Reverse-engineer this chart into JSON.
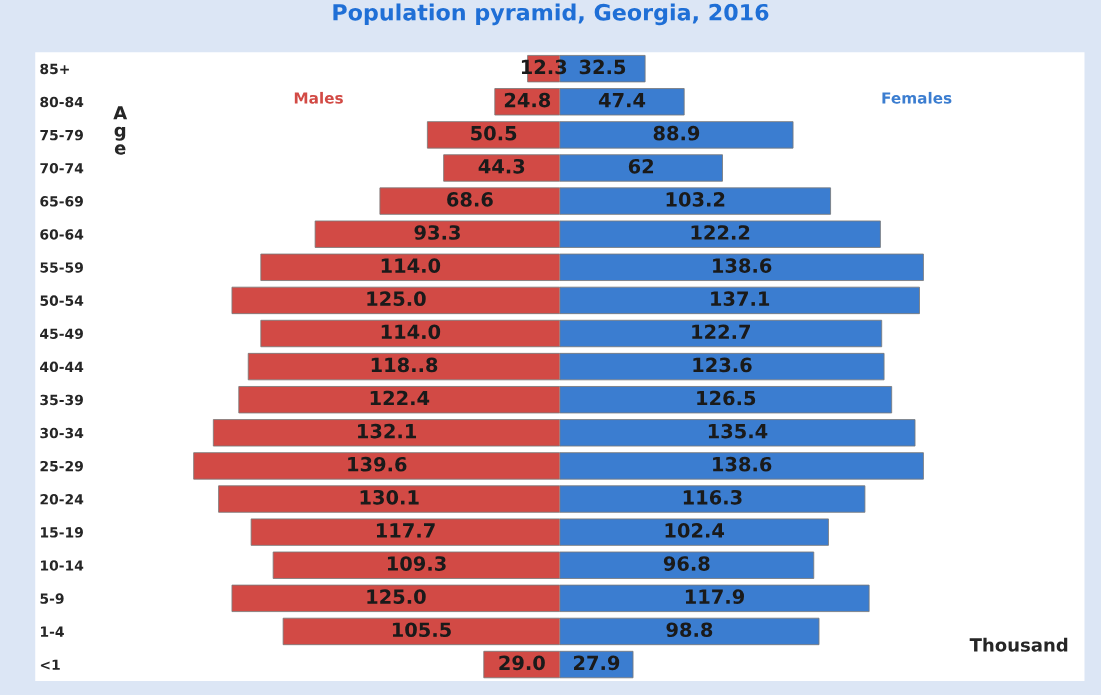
{
  "chart_data": [
    {
      "type": "bar",
      "orientation": "horizontal",
      "title": "Population pyramid, Georgia, 2016",
      "ylabel": "Age",
      "xlim": [
        200,
        0
      ],
      "tick_labels": "y",
      "categories": [
        "85+",
        "80-84",
        "75-79",
        "70-74",
        "65-69",
        "60-64",
        "55-59",
        "50-54",
        "45-49",
        "40-44",
        "35-39",
        "30-34",
        "25-29",
        "20-24",
        "15-19",
        "10-14",
        "5-9",
        "1-4",
        "<1"
      ],
      "series": [
        {
          "name": "Males",
          "color": "#d24a45",
          "values": [
            12.3,
            24.8,
            50.5,
            44.3,
            68.6,
            93.3,
            114.0,
            125.0,
            114.0,
            118.8,
            122.4,
            132.1,
            139.6,
            130.1,
            117.7,
            109.3,
            125.0,
            105.5,
            29.0
          ],
          "value_labels": [
            "12.3",
            "24.8",
            "50.5",
            "44.3",
            "68.6",
            "93.3",
            "114.0",
            "125.0",
            "114.0",
            "118..8",
            "122.4",
            "132.1",
            "139.6",
            "130.1",
            "117.7",
            "109.3",
            "125.0",
            "105.5",
            "29.0"
          ]
        }
      ],
      "legend": false,
      "grid": false
    },
    {
      "type": "bar",
      "orientation": "horizontal",
      "xlim": [
        0,
        200
      ],
      "series": [
        {
          "name": "Females",
          "color": "#3b7dd0",
          "values": [
            32.5,
            47.4,
            88.9,
            62,
            103.2,
            122.2,
            138.6,
            137.1,
            122.7,
            123.6,
            126.5,
            135.4,
            138.6,
            116.3,
            102.4,
            96.8,
            117.9,
            98.8,
            27.9
          ],
          "value_labels": [
            "32.5",
            "47.4",
            "88.9",
            "62",
            "103.2",
            "122.2",
            "138.6",
            "137.1",
            "122.7",
            "123.6",
            "126.5",
            "135.4",
            "138.6",
            "116.3",
            "102.4",
            "96.8",
            "117.9",
            "98.8",
            "27.9"
          ]
        }
      ],
      "annotations": [
        "Thousand"
      ],
      "legend": false,
      "grid": false
    }
  ]
}
